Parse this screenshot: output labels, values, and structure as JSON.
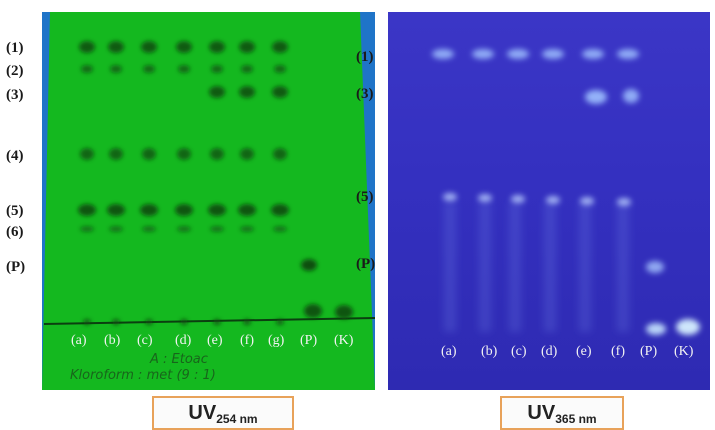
{
  "left_panel": {
    "row_labels": [
      "(1)",
      "(2)",
      "(3)",
      "(4)",
      "(5)",
      "(6)",
      "(P)"
    ],
    "lane_labels": [
      "(a)",
      "(b)",
      "(c)",
      "(d)",
      "(e)",
      "(f)",
      "(g)",
      "(P)",
      "(K)"
    ],
    "handwriting_line1": "A : Etoac",
    "handwriting_line2": "Kloroform : met  (9 : 1)",
    "caption_main": "UV",
    "caption_sub": "254 nm"
  },
  "right_panel": {
    "row_labels": [
      "(1)",
      "(3)",
      "(5)",
      "(P)"
    ],
    "lane_labels": [
      "(a)",
      "(b)",
      "(c)",
      "(d)",
      "(e)",
      "(f)",
      "(P)",
      "(K)"
    ],
    "caption_main": "UV",
    "caption_sub": "365 nm"
  },
  "colors": {
    "green_plate": "#14b81f",
    "blue_plate": "#3532c0",
    "dark_spot": "#0b4a12",
    "fluorescent_spot": "#9fc0ff",
    "caption_border": "#e8a25a"
  }
}
